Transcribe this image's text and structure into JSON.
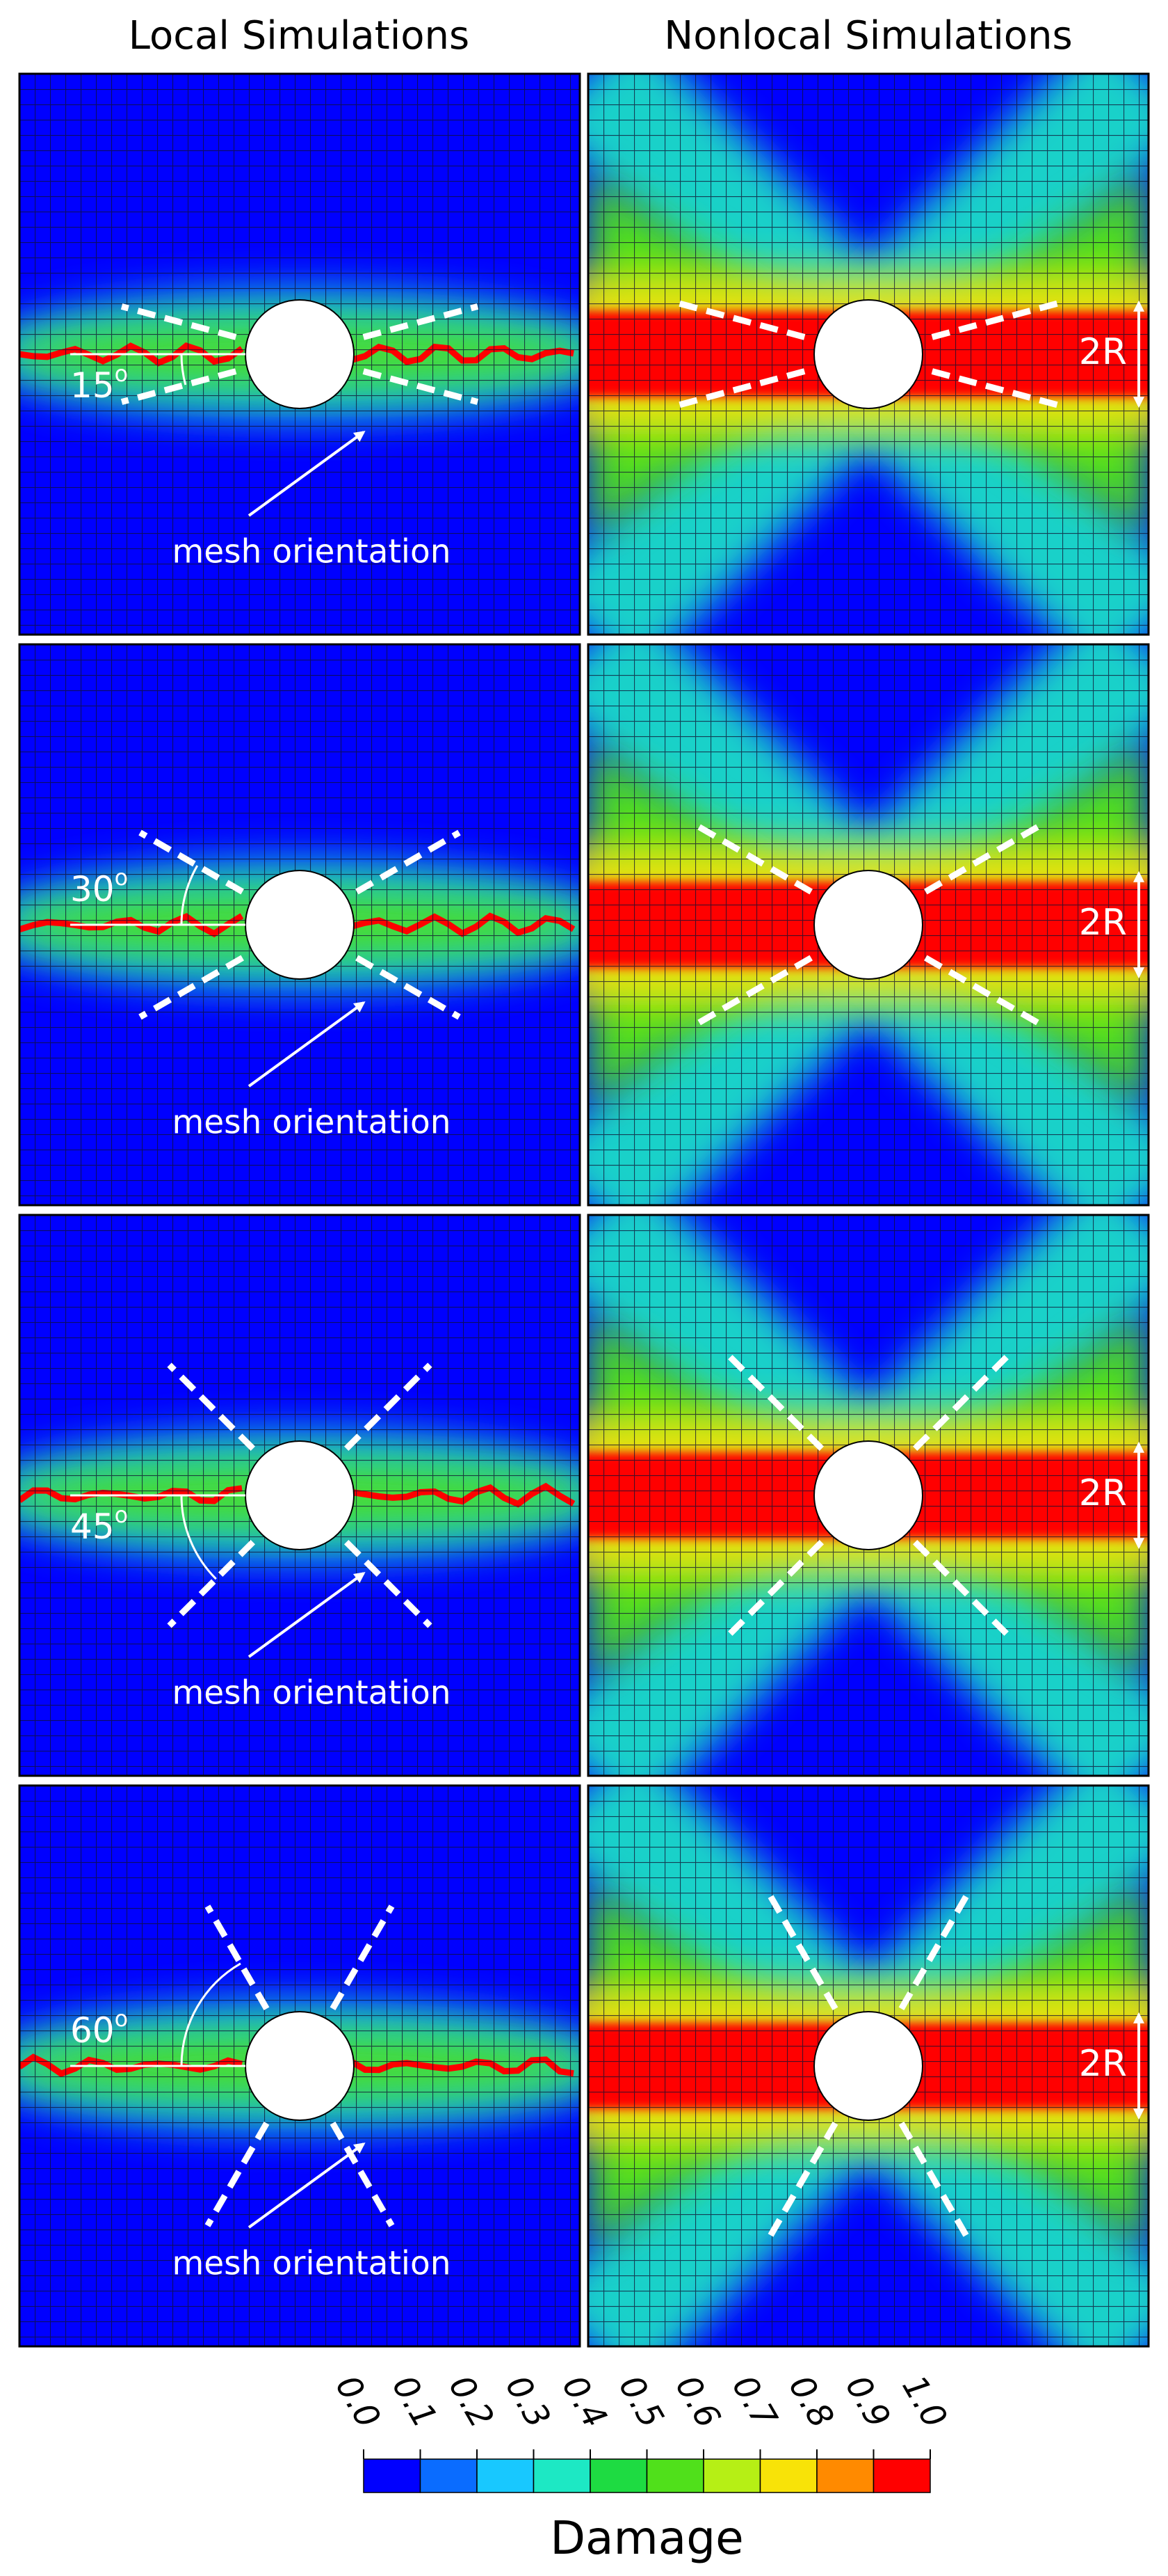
{
  "columns": [
    "Local Simulations",
    "Nonlocal Simulations"
  ],
  "rows": [
    {
      "angle": 15,
      "degree": "o",
      "annotation": "mesh orientation",
      "width_label": "2R"
    },
    {
      "angle": 30,
      "degree": "o",
      "annotation": "mesh orientation",
      "width_label": "2R"
    },
    {
      "angle": 45,
      "degree": "o",
      "annotation": "mesh orientation",
      "width_label": "2R"
    },
    {
      "angle": 60,
      "degree": "o",
      "annotation": "mesh orientation",
      "width_label": "2R"
    }
  ],
  "colorbar": {
    "ticks": [
      "0.0",
      "0.1",
      "0.2",
      "0.3",
      "0.4",
      "0.5",
      "0.6",
      "0.7",
      "0.8",
      "0.9",
      "1.0"
    ],
    "colors": [
      "#0000ff",
      "#0a6cff",
      "#18c8ff",
      "#1de8c4",
      "#1edb42",
      "#50e01b",
      "#b6ef15",
      "#f8e308",
      "#ff8a00",
      "#ff0000"
    ],
    "label": "Damage"
  }
}
